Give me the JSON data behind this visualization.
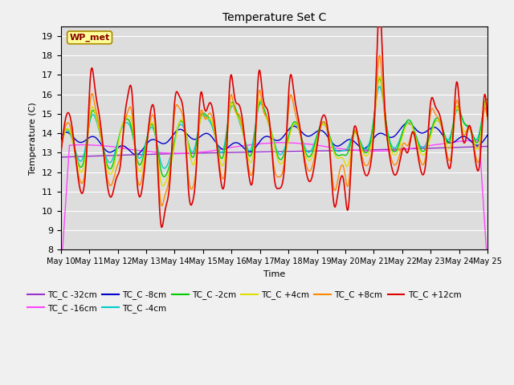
{
  "title": "Temperature Set C",
  "xlabel": "Time",
  "ylabel": "Temperature (C)",
  "ylim": [
    8.0,
    19.5
  ],
  "yticks": [
    8.0,
    9.0,
    10.0,
    11.0,
    12.0,
    13.0,
    14.0,
    15.0,
    16.0,
    17.0,
    18.0,
    19.0
  ],
  "series_colors": {
    "TC_C -32cm": "#9933cc",
    "TC_C -16cm": "#ff44ff",
    "TC_C -8cm": "#0000cc",
    "TC_C -4cm": "#00cccc",
    "TC_C -2cm": "#00cc00",
    "TC_C +4cm": "#dddd00",
    "TC_C +8cm": "#ff8800",
    "TC_C +12cm": "#dd0000"
  },
  "legend_box_label": "WP_met",
  "legend_box_color": "#ffff99",
  "legend_box_border": "#aa8800",
  "plot_bg_color": "#dddddd",
  "fig_bg_color": "#f0f0f0"
}
